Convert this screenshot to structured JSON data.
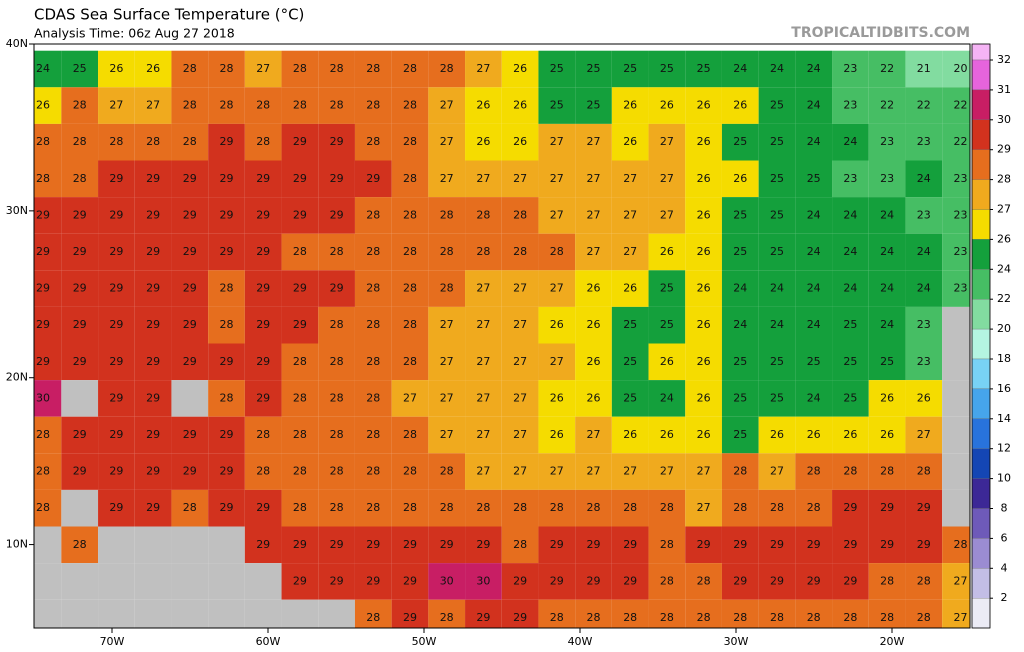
{
  "header": {
    "title": "CDAS Sea Surface Temperature (°C)",
    "subtitle": "Analysis Time: 06z Aug 27 2018",
    "source": "TROPICALTIDBITS.COM"
  },
  "map": {
    "xlim": [
      -75,
      -15
    ],
    "ylim": [
      5,
      40
    ],
    "xticks": [
      {
        "value": -70,
        "label": "70W"
      },
      {
        "value": -60,
        "label": "60W"
      },
      {
        "value": -50,
        "label": "50W"
      },
      {
        "value": -40,
        "label": "40W"
      },
      {
        "value": -30,
        "label": "30W"
      },
      {
        "value": -20,
        "label": "20W"
      }
    ],
    "yticks": [
      {
        "value": 40,
        "label": "40N"
      },
      {
        "value": 30,
        "label": "30N"
      },
      {
        "value": 20,
        "label": "20N"
      },
      {
        "value": 10,
        "label": "10N"
      }
    ],
    "land_color": "#c0c0c0",
    "grid": [
      [
        24,
        25,
        26,
        26,
        28,
        28,
        27,
        28,
        28,
        28,
        28,
        28,
        27,
        26,
        25,
        25,
        25,
        25,
        25,
        24,
        24,
        24,
        23,
        22,
        21,
        20
      ],
      [
        26,
        28,
        27,
        27,
        28,
        28,
        28,
        28,
        28,
        28,
        28,
        27,
        26,
        26,
        25,
        25,
        26,
        26,
        26,
        26,
        25,
        24,
        23,
        22,
        22,
        22
      ],
      [
        28,
        28,
        28,
        28,
        28,
        29,
        28,
        29,
        29,
        28,
        28,
        27,
        26,
        26,
        27,
        27,
        26,
        27,
        26,
        25,
        25,
        24,
        24,
        23,
        23,
        22
      ],
      [
        28,
        28,
        29,
        29,
        29,
        29,
        29,
        29,
        29,
        29,
        28,
        27,
        27,
        27,
        27,
        27,
        27,
        27,
        26,
        26,
        25,
        25,
        23,
        23,
        24,
        23
      ],
      [
        29,
        29,
        29,
        29,
        29,
        29,
        29,
        29,
        29,
        28,
        28,
        28,
        28,
        28,
        27,
        27,
        27,
        27,
        26,
        25,
        25,
        24,
        24,
        24,
        23,
        23
      ],
      [
        29,
        29,
        29,
        29,
        29,
        29,
        29,
        28,
        28,
        28,
        28,
        28,
        28,
        28,
        28,
        27,
        27,
        26,
        26,
        25,
        25,
        24,
        24,
        24,
        24,
        23
      ],
      [
        29,
        29,
        29,
        29,
        29,
        28,
        29,
        29,
        29,
        28,
        28,
        28,
        27,
        27,
        27,
        26,
        26,
        25,
        26,
        24,
        24,
        24,
        24,
        24,
        24,
        23
      ],
      [
        29,
        29,
        29,
        29,
        29,
        28,
        29,
        29,
        28,
        28,
        28,
        27,
        27,
        27,
        26,
        26,
        25,
        25,
        26,
        24,
        24,
        24,
        25,
        24,
        23,
        null
      ],
      [
        29,
        29,
        29,
        29,
        29,
        29,
        29,
        28,
        28,
        28,
        28,
        27,
        27,
        27,
        27,
        26,
        25,
        26,
        26,
        25,
        25,
        25,
        25,
        25,
        23,
        null
      ],
      [
        30,
        null,
        29,
        29,
        null,
        28,
        29,
        28,
        28,
        28,
        27,
        27,
        27,
        27,
        26,
        26,
        25,
        24,
        26,
        25,
        25,
        24,
        25,
        26,
        26,
        null
      ],
      [
        28,
        29,
        29,
        29,
        29,
        29,
        28,
        28,
        28,
        28,
        28,
        27,
        27,
        27,
        26,
        27,
        26,
        26,
        26,
        25,
        26,
        26,
        26,
        26,
        27,
        null
      ],
      [
        28,
        29,
        29,
        29,
        29,
        29,
        28,
        28,
        28,
        28,
        28,
        28,
        27,
        27,
        27,
        27,
        27,
        27,
        27,
        28,
        27,
        28,
        28,
        28,
        28,
        null
      ],
      [
        28,
        null,
        29,
        29,
        28,
        29,
        29,
        28,
        28,
        28,
        28,
        28,
        28,
        28,
        28,
        28,
        28,
        28,
        27,
        28,
        28,
        28,
        29,
        29,
        29,
        null
      ],
      [
        null,
        28,
        null,
        null,
        null,
        null,
        29,
        29,
        29,
        29,
        29,
        29,
        29,
        28,
        29,
        29,
        29,
        28,
        29,
        29,
        29,
        29,
        29,
        29,
        29,
        28
      ],
      [
        null,
        null,
        null,
        null,
        null,
        null,
        null,
        29,
        29,
        29,
        29,
        30,
        30,
        29,
        29,
        29,
        29,
        28,
        28,
        29,
        29,
        29,
        29,
        28,
        28,
        27
      ],
      [
        null,
        null,
        null,
        null,
        null,
        null,
        null,
        null,
        null,
        28,
        29,
        28,
        29,
        29,
        28,
        28,
        28,
        28,
        28,
        28,
        28,
        28,
        28,
        28,
        28,
        27
      ]
    ]
  },
  "colorbar": {
    "ticks": [
      32,
      31,
      30,
      29,
      28,
      27,
      26,
      24,
      22,
      20,
      18,
      16,
      14,
      12,
      10,
      8,
      6,
      4,
      2
    ],
    "colors": [
      "#f5b4f5",
      "#e664dc",
      "#c81e64",
      "#d2321e",
      "#e66e1e",
      "#f0aa1e",
      "#f5dc00",
      "#14a03c",
      "#46be64",
      "#82dca0",
      "#b4f5e1",
      "#78d2f5",
      "#46a5eb",
      "#2873dc",
      "#1446b4",
      "#3c2896",
      "#6e5ab9",
      "#9b8cd2",
      "#c3bee6",
      "#ebebf5"
    ]
  }
}
